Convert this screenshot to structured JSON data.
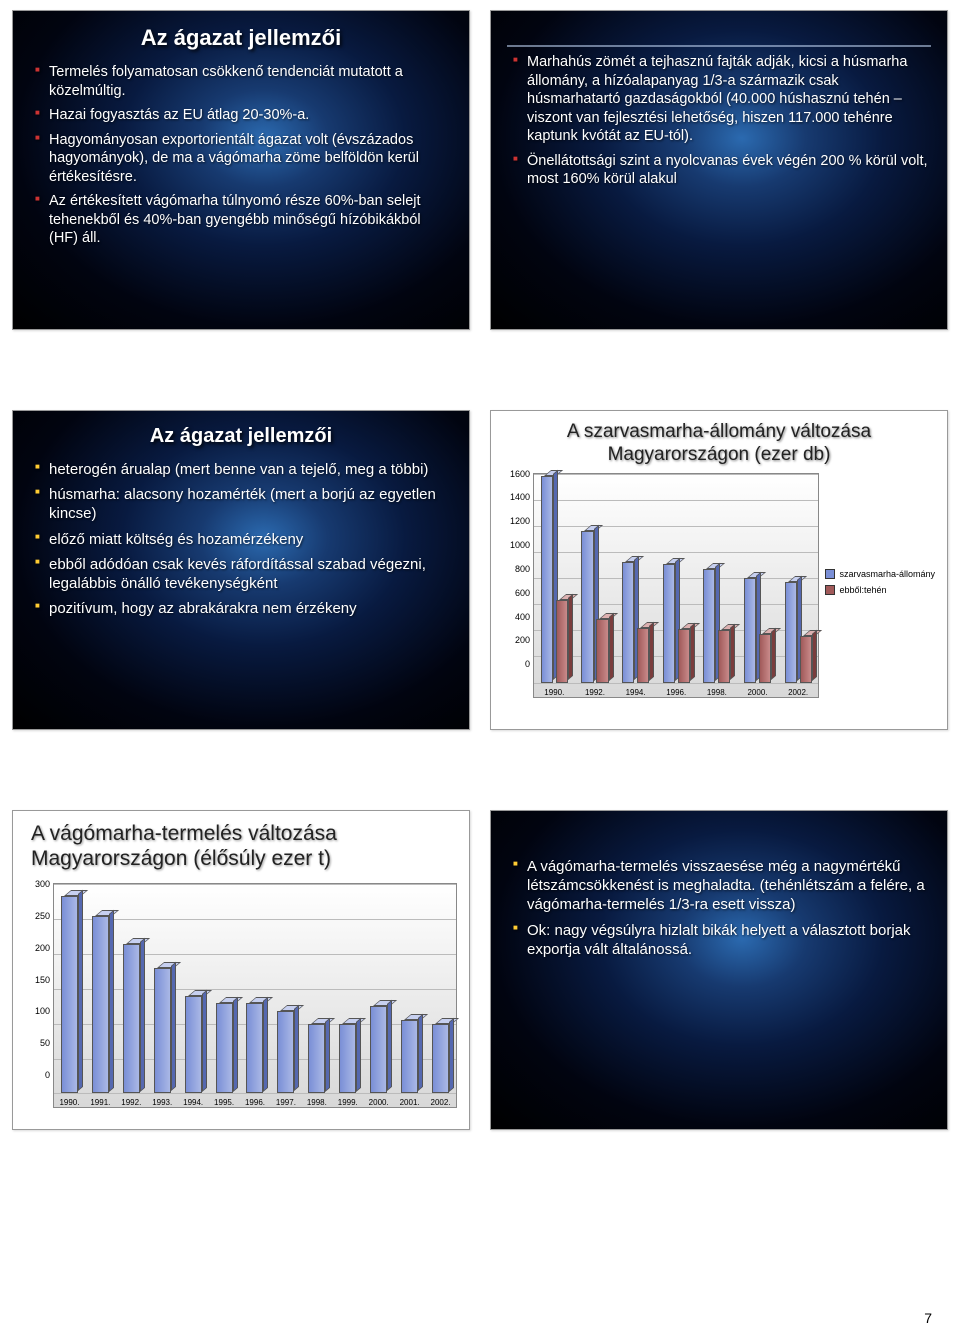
{
  "page_number": "7",
  "slides": {
    "s1": {
      "title": "Az ágazat jellemzői",
      "bg": "dark",
      "bullet_color": "#cc3333",
      "items": [
        "Termelés folyamatosan csökkenő tendenciát mutatott a közelmúltig.",
        "Hazai fogyasztás az EU átlag 20-30%-a.",
        "Hagyományosan exportorientált ágazat volt (évszázados hagyományok), de ma a vágómarha zöme belföldön kerül értékesítésre.",
        "Az értékesített vágómarha túlnyomó része 60%-ban selejt tehenekből és 40%-ban gyengébb minőségű hízóbikákból (HF) áll."
      ]
    },
    "s2": {
      "bg": "dark",
      "bullet_color": "#cc3333",
      "items": [
        "Marhahús zömét a tejhasznú fajták adják, kicsi a húsmarha állomány, a hízóalapanyag 1/3-a származik csak húsmarhatartó gazdaságokból (40.000 húshasznú tehén – viszont van fejlesztési lehetőség, hiszen 117.000 tehénre kaptunk kvótát az EU-tól).",
        "Önellátottsági szint a nyolcvanas évek végén 200 % körül volt, most 160% körül alakul"
      ]
    },
    "s3": {
      "title": "Az ágazat jellemzői",
      "bg": "dark",
      "bullet_color": "#ffcc33",
      "items": [
        "heterogén árualap (mert benne van a tejelő, meg a többi)",
        "húsmarha: alacsony hozamérték (mert a borjú az egyetlen kincse)",
        "előző miatt költség és hozamérzékeny",
        "ebből adódóan csak kevés ráfordítással szabad végezni, legalábbis önálló tevékenységként",
        "pozitívum, hogy az abrakárakra nem érzékeny"
      ]
    },
    "s4": {
      "title_line1": "A szarvasmarha-állomány változása",
      "title_line2": "Magyarországon (ezer db)",
      "chart": {
        "ylim": [
          0,
          1600
        ],
        "ytick_step": 200,
        "categories": [
          "1990.",
          "1992.",
          "1994.",
          "1996.",
          "1998.",
          "2000.",
          "2002."
        ],
        "series": [
          {
            "name": "szarvasmarha-állomány",
            "color1": "#7a8fd6",
            "color2": "#aab8e6",
            "ctop": "#c7d0f0",
            "cside": "#5568b0",
            "values": [
              1580,
              1160,
              920,
              910,
              870,
              800,
              770
            ]
          },
          {
            "name": "ebből:tehén",
            "color1": "#a15a5a",
            "color2": "#c98a8a",
            "ctop": "#dcb0b0",
            "cside": "#7a3d3d",
            "values": [
              630,
              490,
              420,
              410,
              400,
              370,
              360
            ]
          }
        ]
      }
    },
    "s5": {
      "title_line1": "A vágómarha-termelés változása",
      "title_line2": "Magyarországon (élősúly ezer t)",
      "chart": {
        "ylim": [
          0,
          300
        ],
        "ytick_step": 50,
        "categories": [
          "1990.",
          "1991.",
          "1992.",
          "1993.",
          "1994.",
          "1995.",
          "1996.",
          "1997.",
          "1998.",
          "1999.",
          "2000.",
          "2001.",
          "2002."
        ],
        "color1": "#7a8fd6",
        "color2": "#aab8e6",
        "ctop": "#c7d0f0",
        "cside": "#5568b0",
        "values": [
          283,
          255,
          215,
          180,
          140,
          130,
          130,
          118,
          100,
          100,
          125,
          105,
          100
        ]
      }
    },
    "s6": {
      "bg": "dark",
      "bullet_color": "#ffcc33",
      "items": [
        "A vágómarha-termelés visszaesése még a nagymértékű létszámcsökkenést is meghaladta. (tehénlétszám a felére, a vágómarha-termelés 1/3-ra esett vissza)",
        "Ok: nagy végsúlyra hizlalt bikák helyett a választott borjak exportja vált általánossá."
      ]
    }
  }
}
